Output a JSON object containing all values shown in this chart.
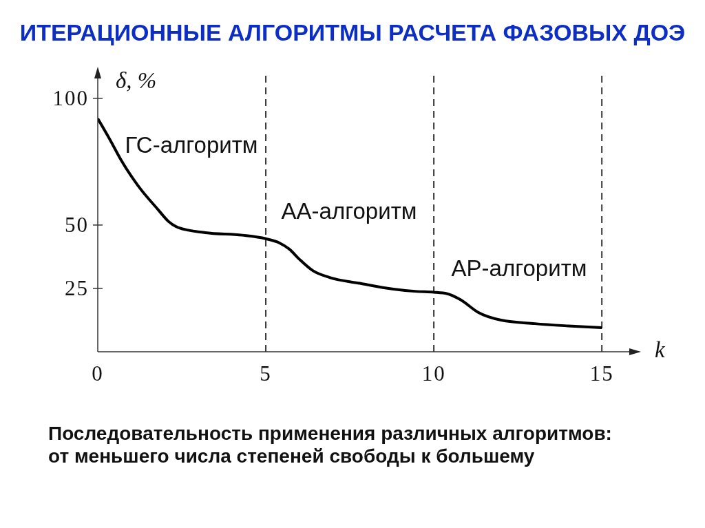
{
  "chart_data": {
    "type": "line",
    "title": "ИТЕРАЦИОННЫЕ АЛГОРИТМЫ РАСЧЕТА ФАЗОВЫХ ДОЭ",
    "xlabel": "k",
    "ylabel": "δ, %",
    "xlim": [
      0,
      16
    ],
    "ylim": [
      0,
      110
    ],
    "xticks": [
      0,
      5,
      10,
      15
    ],
    "yticks": [
      25,
      50,
      100
    ],
    "series": [
      {
        "color": "#000000",
        "line_style": "solid",
        "x": [
          0,
          0.35,
          0.7,
          1.2,
          1.8,
          2.1,
          2.4,
          3.2,
          4.3,
          5.0,
          5.4,
          5.7,
          6.0,
          6.4,
          6.9,
          7.8,
          8.8,
          9.5,
          10.0,
          10.4,
          10.8,
          11.3,
          12.0,
          13.0,
          14.0,
          15.0
        ],
        "values": [
          92,
          84,
          75.5,
          65.5,
          56,
          51.5,
          49,
          47,
          46,
          44.6,
          43,
          40.5,
          36.5,
          32,
          29.3,
          27,
          24.7,
          23.8,
          23.5,
          22.9,
          20.5,
          15.7,
          12.5,
          11.1,
          10.2,
          9.5
        ]
      }
    ],
    "ref_lines": [
      {
        "axis": "x",
        "value": 5,
        "color": "#000000",
        "line_style": "dashed"
      },
      {
        "axis": "x",
        "value": 10,
        "color": "#000000",
        "line_style": "dashed"
      },
      {
        "axis": "x",
        "value": 15,
        "color": "#000000",
        "line_style": "dashed"
      }
    ],
    "annotations": [
      "ГС-алгоритм",
      "АА-алгоритм",
      "АР-алгоритм",
      "Последовательность применения различных алгоритмов: от меньшего числа степеней свободы к большему"
    ]
  }
}
